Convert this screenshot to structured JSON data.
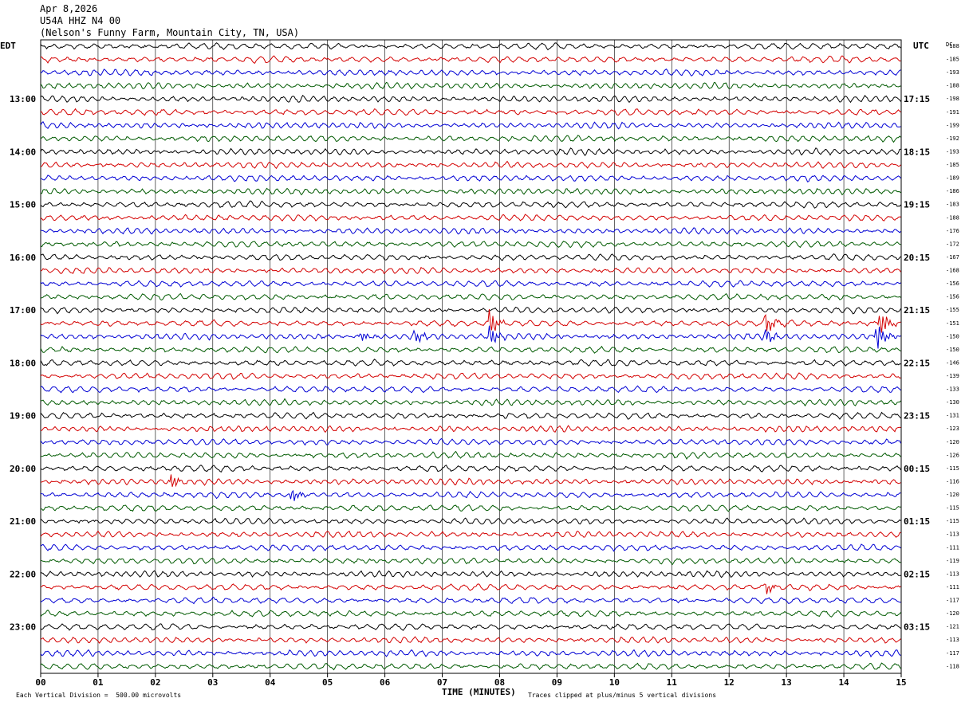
{
  "header": {
    "date": "Apr 8,2026",
    "station": "U54A HHZ N4 00",
    "location": "(Nelson's Funny Farm, Mountain City, TN, USA)"
  },
  "chart_data": {
    "type": "line",
    "title": "Apr 8,2026",
    "left_axis_label": "EDT",
    "right_axis_label": "UTC",
    "dc_label": "DC",
    "xlabel": "TIME (MINUTES)",
    "xlim": [
      0,
      15
    ],
    "x_ticks": [
      "00",
      "01",
      "02",
      "03",
      "04",
      "05",
      "06",
      "07",
      "08",
      "09",
      "10",
      "11",
      "12",
      "13",
      "14",
      "15"
    ],
    "left_times": [
      "13:00",
      "14:00",
      "15:00",
      "16:00",
      "17:00",
      "18:00",
      "19:00",
      "20:00",
      "21:00",
      "22:00",
      "23:00"
    ],
    "right_times": [
      "17:15",
      "18:15",
      "19:15",
      "20:15",
      "21:15",
      "22:15",
      "23:15",
      "00:15",
      "01:15",
      "02:15",
      "03:15"
    ],
    "trace_colors": [
      "#000000",
      "#d40000",
      "#0000d4",
      "#005a00"
    ],
    "dc_offsets": [
      -188,
      -185,
      -193,
      -188,
      -198,
      -191,
      -199,
      -192,
      -193,
      -185,
      -189,
      -186,
      -183,
      -188,
      -176,
      -172,
      -167,
      -168,
      -156,
      -156,
      -155,
      -151,
      -150,
      -150,
      -146,
      -139,
      -133,
      -130,
      -131,
      -123,
      -120,
      -126,
      -115,
      -116,
      -120,
      -115,
      -115,
      -113,
      -111,
      -119,
      -113,
      -111,
      -117,
      -120,
      -121,
      -113,
      -117,
      -118
    ],
    "events": [
      {
        "trace": 21,
        "minute": 7.85,
        "amplitude": 1.0
      },
      {
        "trace": 21,
        "minute": 12.65,
        "amplitude": 0.9
      },
      {
        "trace": 21,
        "minute": 14.65,
        "amplitude": 1.0
      },
      {
        "trace": 22,
        "minute": 5.6,
        "amplitude": 0.45
      },
      {
        "trace": 22,
        "minute": 6.55,
        "amplitude": 0.45
      },
      {
        "trace": 22,
        "minute": 7.85,
        "amplitude": 0.9
      },
      {
        "trace": 22,
        "minute": 12.65,
        "amplitude": 0.6
      },
      {
        "trace": 22,
        "minute": 14.6,
        "amplitude": 1.0
      },
      {
        "trace": 33,
        "minute": 2.3,
        "amplitude": 0.5
      },
      {
        "trace": 34,
        "minute": 4.4,
        "amplitude": 0.55
      },
      {
        "trace": 41,
        "minute": 12.65,
        "amplitude": 0.5
      }
    ],
    "grid": true
  },
  "footer": {
    "scale_note": "Each Vertical Division =  500.00 microvolts",
    "clip_note": "Traces clipped at plus/minus 5 vertical divisions"
  }
}
